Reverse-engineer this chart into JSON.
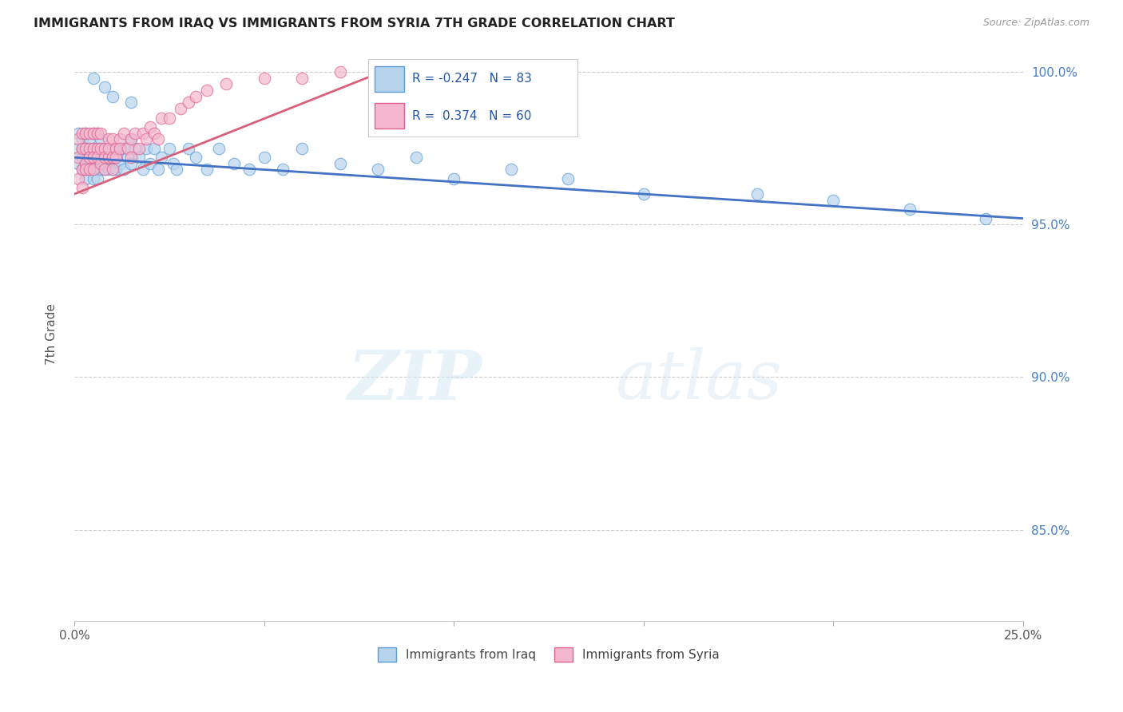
{
  "title": "IMMIGRANTS FROM IRAQ VS IMMIGRANTS FROM SYRIA 7TH GRADE CORRELATION CHART",
  "source": "Source: ZipAtlas.com",
  "ylabel": "7th Grade",
  "xlim": [
    0.0,
    0.25
  ],
  "ylim": [
    0.82,
    1.008
  ],
  "ytick_positions": [
    0.85,
    0.9,
    0.95,
    1.0
  ],
  "ytick_labels": [
    "85.0%",
    "90.0%",
    "95.0%",
    "100.0%"
  ],
  "xtick_positions": [
    0.0,
    0.05,
    0.1,
    0.15,
    0.2,
    0.25
  ],
  "xtick_labels": [
    "0.0%",
    "",
    "",
    "",
    "",
    "25.0%"
  ],
  "iraq_fill": "#b8d4ed",
  "iraq_edge": "#5b9bd5",
  "syria_fill": "#f4b8ce",
  "syria_edge": "#e06090",
  "iraq_line_color": "#4472c4",
  "syria_line_color": "#d9607a",
  "R_iraq": -0.247,
  "N_iraq": 83,
  "R_syria": 0.374,
  "N_syria": 60,
  "watermark_zip": "ZIP",
  "watermark_atlas": "atlas",
  "iraq_line_x0": 0.0,
  "iraq_line_y0": 0.972,
  "iraq_line_x1": 0.25,
  "iraq_line_y1": 0.952,
  "syria_line_x0": 0.0,
  "syria_line_y0": 0.96,
  "syria_line_x1": 0.085,
  "syria_line_y1": 1.002,
  "iraq_x": [
    0.001,
    0.001,
    0.001,
    0.002,
    0.002,
    0.002,
    0.002,
    0.003,
    0.003,
    0.003,
    0.003,
    0.003,
    0.004,
    0.004,
    0.004,
    0.004,
    0.005,
    0.005,
    0.005,
    0.005,
    0.005,
    0.006,
    0.006,
    0.006,
    0.006,
    0.006,
    0.007,
    0.007,
    0.007,
    0.007,
    0.008,
    0.008,
    0.008,
    0.009,
    0.009,
    0.009,
    0.01,
    0.01,
    0.01,
    0.011,
    0.011,
    0.012,
    0.012,
    0.013,
    0.013,
    0.014,
    0.015,
    0.015,
    0.016,
    0.017,
    0.018,
    0.019,
    0.02,
    0.021,
    0.022,
    0.023,
    0.025,
    0.026,
    0.027,
    0.03,
    0.032,
    0.035,
    0.038,
    0.042,
    0.046,
    0.05,
    0.055,
    0.06,
    0.07,
    0.08,
    0.09,
    0.1,
    0.115,
    0.13,
    0.15,
    0.18,
    0.2,
    0.22,
    0.24,
    0.005,
    0.008,
    0.01,
    0.015
  ],
  "iraq_y": [
    0.975,
    0.97,
    0.98,
    0.975,
    0.968,
    0.972,
    0.978,
    0.975,
    0.97,
    0.965,
    0.98,
    0.968,
    0.975,
    0.97,
    0.968,
    0.978,
    0.975,
    0.972,
    0.968,
    0.98,
    0.965,
    0.975,
    0.97,
    0.968,
    0.98,
    0.965,
    0.975,
    0.97,
    0.968,
    0.978,
    0.975,
    0.972,
    0.968,
    0.975,
    0.97,
    0.968,
    0.972,
    0.968,
    0.975,
    0.972,
    0.968,
    0.975,
    0.97,
    0.975,
    0.968,
    0.972,
    0.978,
    0.97,
    0.975,
    0.972,
    0.968,
    0.975,
    0.97,
    0.975,
    0.968,
    0.972,
    0.975,
    0.97,
    0.968,
    0.975,
    0.972,
    0.968,
    0.975,
    0.97,
    0.968,
    0.972,
    0.968,
    0.975,
    0.97,
    0.968,
    0.972,
    0.965,
    0.968,
    0.965,
    0.96,
    0.96,
    0.958,
    0.955,
    0.952,
    0.998,
    0.995,
    0.992,
    0.99
  ],
  "syria_x": [
    0.001,
    0.001,
    0.001,
    0.002,
    0.002,
    0.002,
    0.002,
    0.003,
    0.003,
    0.003,
    0.003,
    0.004,
    0.004,
    0.004,
    0.004,
    0.005,
    0.005,
    0.005,
    0.005,
    0.006,
    0.006,
    0.006,
    0.007,
    0.007,
    0.007,
    0.008,
    0.008,
    0.008,
    0.009,
    0.009,
    0.009,
    0.01,
    0.01,
    0.01,
    0.011,
    0.011,
    0.012,
    0.012,
    0.013,
    0.014,
    0.015,
    0.015,
    0.016,
    0.017,
    0.018,
    0.019,
    0.02,
    0.021,
    0.022,
    0.023,
    0.025,
    0.028,
    0.03,
    0.032,
    0.035,
    0.04,
    0.05,
    0.06,
    0.07,
    0.085
  ],
  "syria_y": [
    0.972,
    0.965,
    0.978,
    0.975,
    0.968,
    0.98,
    0.962,
    0.975,
    0.97,
    0.968,
    0.98,
    0.975,
    0.972,
    0.968,
    0.98,
    0.975,
    0.972,
    0.968,
    0.98,
    0.975,
    0.972,
    0.98,
    0.975,
    0.97,
    0.98,
    0.975,
    0.972,
    0.968,
    0.978,
    0.972,
    0.975,
    0.972,
    0.968,
    0.978,
    0.975,
    0.972,
    0.978,
    0.975,
    0.98,
    0.975,
    0.978,
    0.972,
    0.98,
    0.975,
    0.98,
    0.978,
    0.982,
    0.98,
    0.978,
    0.985,
    0.985,
    0.988,
    0.99,
    0.992,
    0.994,
    0.996,
    0.998,
    0.998,
    1.0,
    1.0
  ]
}
